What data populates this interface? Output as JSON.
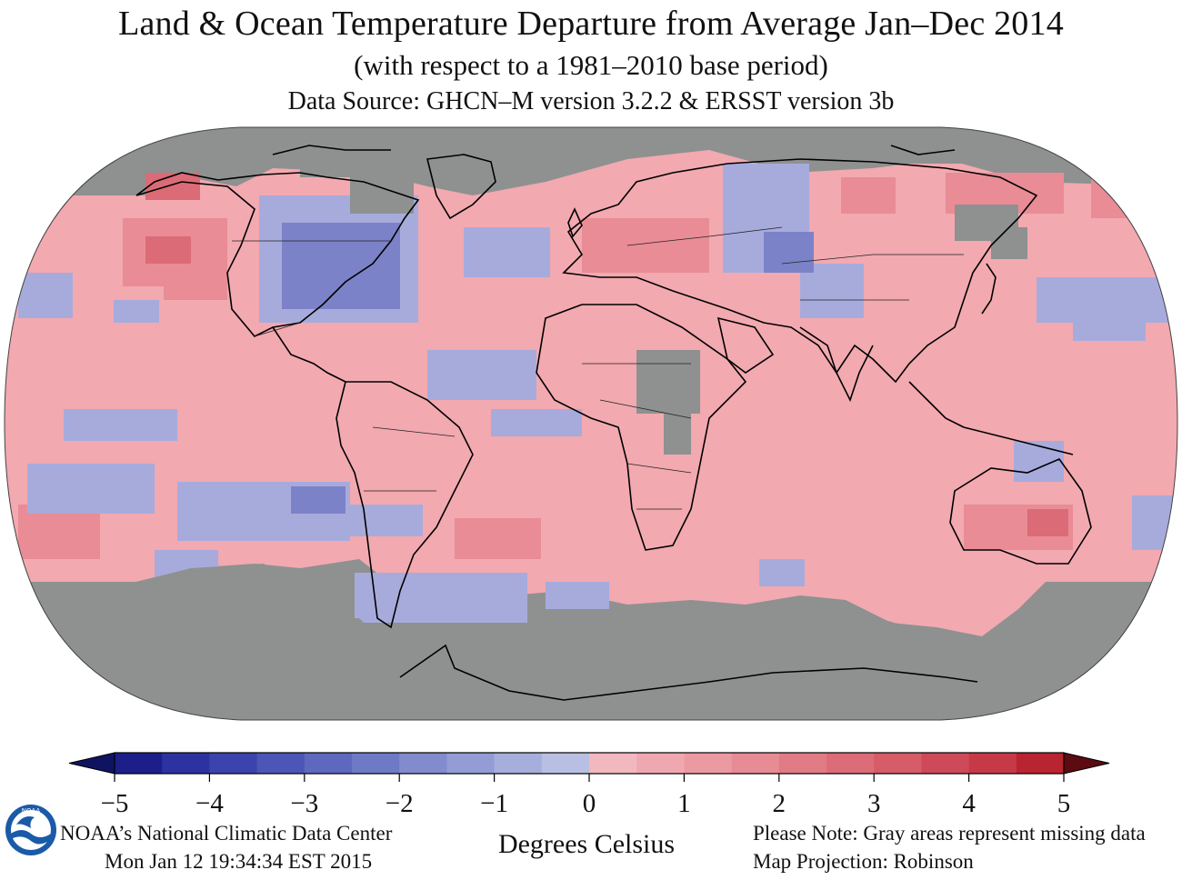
{
  "header": {
    "title": "Land & Ocean Temperature Departure from Average Jan–Dec 2014",
    "subtitle": "(with respect to a 1981–2010 base period)",
    "data_source": "Data Source: GHCN–M version 3.2.2 & ERSST version 3b"
  },
  "map": {
    "projection": "Robinson",
    "ocean_missing_color": "#8e9190",
    "coastline_color": "#000000"
  },
  "legend": {
    "units_label": "Degrees Celsius",
    "ticks": [
      "−5",
      "−4",
      "−3",
      "−2",
      "−1",
      "0",
      "1",
      "2",
      "3",
      "4",
      "5"
    ],
    "range": [
      -5,
      5
    ],
    "step": 0.5,
    "colors_cool": [
      "#1c1f8a",
      "#2c33a0",
      "#3b44ac",
      "#4c56b6",
      "#5e68be",
      "#6f7ac6",
      "#818bcd",
      "#939cd4",
      "#a6aedb",
      "#b8bfe2"
    ],
    "colors_warm": [
      "#f2b8bf",
      "#f0a8b0",
      "#ec9aa2",
      "#e78b94",
      "#e17c86",
      "#dc6c77",
      "#d65c68",
      "#cf4a58",
      "#c63a48",
      "#b8242f"
    ],
    "under_color": "#101460",
    "over_color": "#5c0b10"
  },
  "footer": {
    "source_line1": "NOAA’s National Climatic Data Center",
    "source_line2": "Mon Jan 12 19:34:34 EST 2015",
    "note_line1": "Please Note: Gray areas represent missing data",
    "note_line2": "Map Projection: Robinson"
  },
  "logo": {
    "text": "NOAA"
  }
}
